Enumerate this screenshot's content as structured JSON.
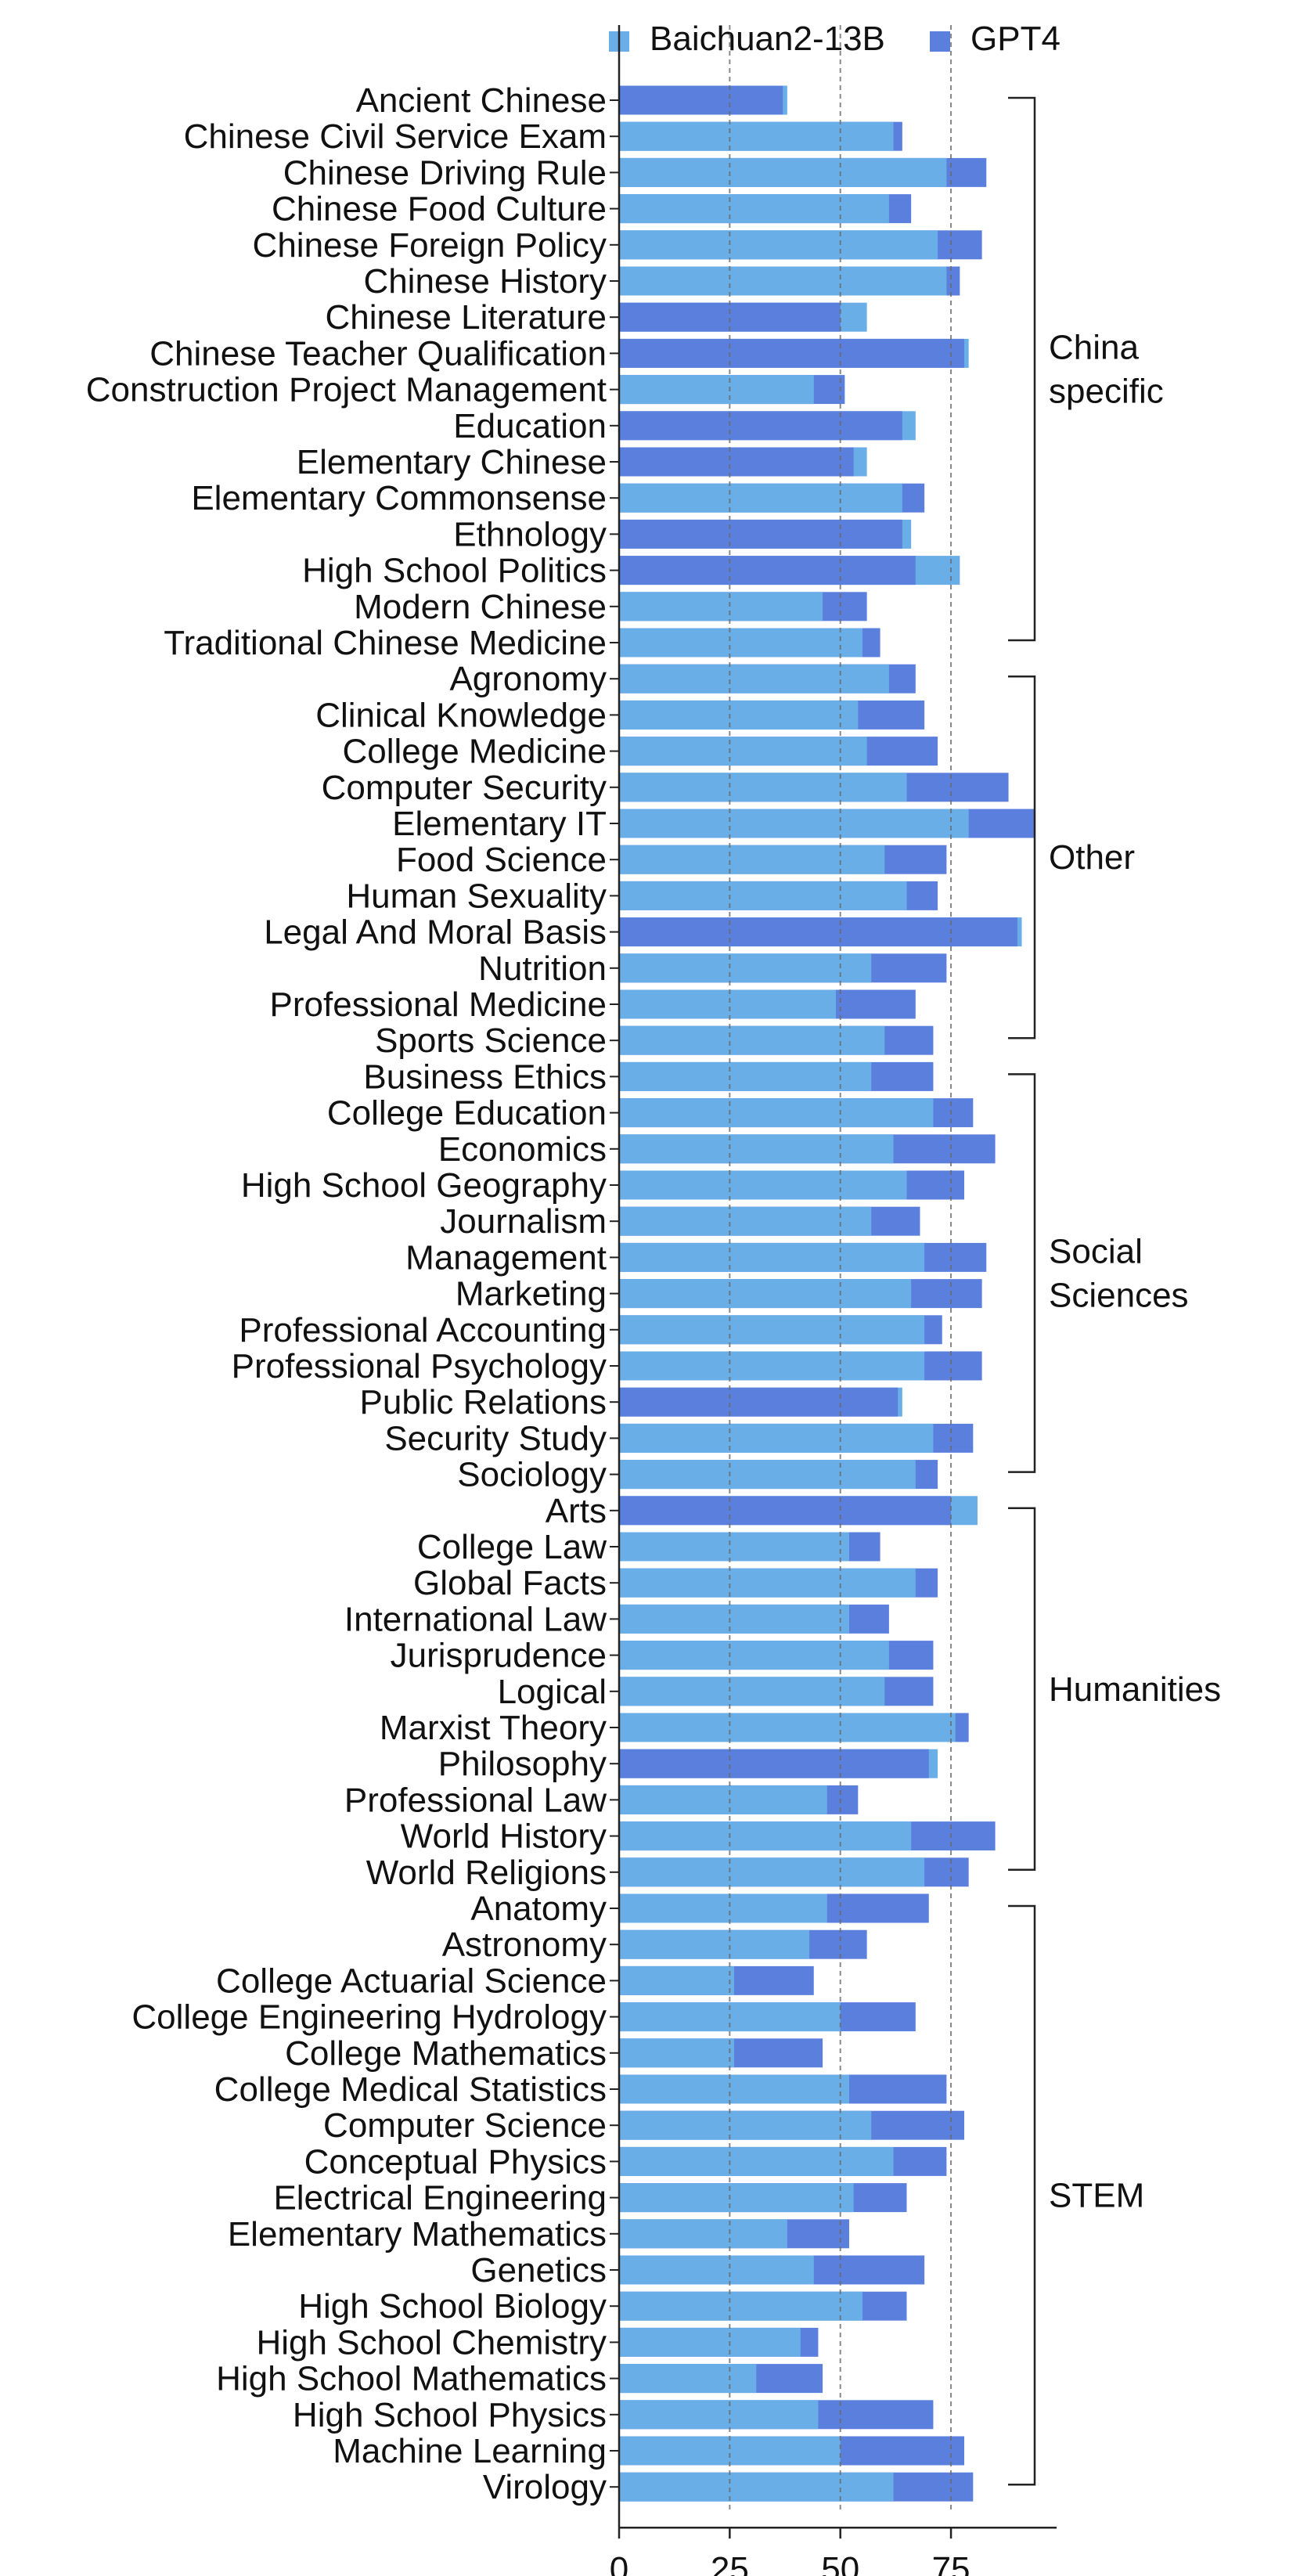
{
  "chart_data": {
    "type": "bar",
    "orientation": "horizontal",
    "xlim": [
      0,
      100
    ],
    "xticks": [
      0,
      25,
      50,
      75
    ],
    "grid": "vertical dashed at 25, 50, 75",
    "legend_position": "top",
    "series": [
      {
        "name": "Baichuan2-13B",
        "color": "#6aaee8"
      },
      {
        "name": "GPT4",
        "color": "#5b7fdc"
      }
    ],
    "groups": [
      {
        "name": "China specific",
        "label_lines": [
          "China",
          "specific"
        ],
        "rows": [
          {
            "category": "Ancient Chinese",
            "baichuan": 38,
            "gpt4": 37
          },
          {
            "category": "Chinese Civil Service Exam",
            "baichuan": 62,
            "gpt4": 64
          },
          {
            "category": "Chinese Driving Rule",
            "baichuan": 74,
            "gpt4": 83
          },
          {
            "category": "Chinese Food Culture",
            "baichuan": 61,
            "gpt4": 66
          },
          {
            "category": "Chinese Foreign Policy",
            "baichuan": 72,
            "gpt4": 82
          },
          {
            "category": "Chinese History",
            "baichuan": 74,
            "gpt4": 77
          },
          {
            "category": "Chinese Literature",
            "baichuan": 56,
            "gpt4": 50
          },
          {
            "category": "Chinese Teacher Qualification",
            "baichuan": 79,
            "gpt4": 78
          },
          {
            "category": "Construction Project Management",
            "baichuan": 44,
            "gpt4": 51
          },
          {
            "category": "Education",
            "baichuan": 67,
            "gpt4": 64
          },
          {
            "category": "Elementary Chinese",
            "baichuan": 56,
            "gpt4": 53
          },
          {
            "category": "Elementary Commonsense",
            "baichuan": 64,
            "gpt4": 69
          },
          {
            "category": "Ethnology",
            "baichuan": 66,
            "gpt4": 64
          },
          {
            "category": "High School Politics",
            "baichuan": 77,
            "gpt4": 67
          },
          {
            "category": "Modern Chinese",
            "baichuan": 46,
            "gpt4": 56
          },
          {
            "category": "Traditional Chinese Medicine",
            "baichuan": 55,
            "gpt4": 59
          }
        ]
      },
      {
        "name": "Other",
        "label_lines": [
          "Other"
        ],
        "rows": [
          {
            "category": "Agronomy",
            "baichuan": 61,
            "gpt4": 67
          },
          {
            "category": "Clinical Knowledge",
            "baichuan": 54,
            "gpt4": 69
          },
          {
            "category": "College Medicine",
            "baichuan": 56,
            "gpt4": 72
          },
          {
            "category": "Computer Security",
            "baichuan": 65,
            "gpt4": 88
          },
          {
            "category": "Elementary IT",
            "baichuan": 79,
            "gpt4": 94
          },
          {
            "category": "Food Science",
            "baichuan": 60,
            "gpt4": 74
          },
          {
            "category": "Human Sexuality",
            "baichuan": 65,
            "gpt4": 72
          },
          {
            "category": "Legal And Moral Basis",
            "baichuan": 91,
            "gpt4": 90
          },
          {
            "category": "Nutrition",
            "baichuan": 57,
            "gpt4": 74
          },
          {
            "category": "Professional Medicine",
            "baichuan": 49,
            "gpt4": 67
          },
          {
            "category": "Sports Science",
            "baichuan": 60,
            "gpt4": 71
          }
        ]
      },
      {
        "name": "Social Sciences",
        "label_lines": [
          "Social",
          "Sciences"
        ],
        "rows": [
          {
            "category": "Business Ethics",
            "baichuan": 57,
            "gpt4": 71
          },
          {
            "category": "College Education",
            "baichuan": 71,
            "gpt4": 80
          },
          {
            "category": "Economics",
            "baichuan": 62,
            "gpt4": 85
          },
          {
            "category": "High School Geography",
            "baichuan": 65,
            "gpt4": 78
          },
          {
            "category": "Journalism",
            "baichuan": 57,
            "gpt4": 68
          },
          {
            "category": "Management",
            "baichuan": 69,
            "gpt4": 83
          },
          {
            "category": "Marketing",
            "baichuan": 66,
            "gpt4": 82
          },
          {
            "category": "Professional Accounting",
            "baichuan": 69,
            "gpt4": 73
          },
          {
            "category": "Professional Psychology",
            "baichuan": 69,
            "gpt4": 82
          },
          {
            "category": "Public Relations",
            "baichuan": 64,
            "gpt4": 63
          },
          {
            "category": "Security Study",
            "baichuan": 71,
            "gpt4": 80
          },
          {
            "category": "Sociology",
            "baichuan": 67,
            "gpt4": 72
          }
        ]
      },
      {
        "name": "Humanities",
        "label_lines": [
          "Humanities"
        ],
        "rows": [
          {
            "category": "Arts",
            "baichuan": 81,
            "gpt4": 75
          },
          {
            "category": "College Law",
            "baichuan": 52,
            "gpt4": 59
          },
          {
            "category": "Global Facts",
            "baichuan": 67,
            "gpt4": 72
          },
          {
            "category": "International Law",
            "baichuan": 52,
            "gpt4": 61
          },
          {
            "category": "Jurisprudence",
            "baichuan": 61,
            "gpt4": 71
          },
          {
            "category": "Logical",
            "baichuan": 60,
            "gpt4": 71
          },
          {
            "category": "Marxist Theory",
            "baichuan": 76,
            "gpt4": 79
          },
          {
            "category": "Philosophy",
            "baichuan": 72,
            "gpt4": 70
          },
          {
            "category": "Professional Law",
            "baichuan": 47,
            "gpt4": 54
          },
          {
            "category": "World History",
            "baichuan": 66,
            "gpt4": 85
          },
          {
            "category": "World Religions",
            "baichuan": 69,
            "gpt4": 79
          }
        ]
      },
      {
        "name": "STEM",
        "label_lines": [
          "STEM"
        ],
        "rows": [
          {
            "category": "Anatomy",
            "baichuan": 47,
            "gpt4": 70
          },
          {
            "category": "Astronomy",
            "baichuan": 43,
            "gpt4": 56
          },
          {
            "category": "College Actuarial Science",
            "baichuan": 26,
            "gpt4": 44
          },
          {
            "category": "College Engineering Hydrology",
            "baichuan": 50,
            "gpt4": 67
          },
          {
            "category": "College Mathematics",
            "baichuan": 26,
            "gpt4": 46
          },
          {
            "category": "College Medical Statistics",
            "baichuan": 52,
            "gpt4": 74
          },
          {
            "category": "Computer Science",
            "baichuan": 57,
            "gpt4": 78
          },
          {
            "category": "Conceptual Physics",
            "baichuan": 62,
            "gpt4": 74
          },
          {
            "category": "Electrical Engineering",
            "baichuan": 53,
            "gpt4": 65
          },
          {
            "category": "Elementary Mathematics",
            "baichuan": 38,
            "gpt4": 52
          },
          {
            "category": "Genetics",
            "baichuan": 44,
            "gpt4": 69
          },
          {
            "category": "High School Biology",
            "baichuan": 55,
            "gpt4": 65
          },
          {
            "category": "High School Chemistry",
            "baichuan": 41,
            "gpt4": 45
          },
          {
            "category": "High School Mathematics",
            "baichuan": 31,
            "gpt4": 46
          },
          {
            "category": "High School Physics",
            "baichuan": 45,
            "gpt4": 71
          },
          {
            "category": "Machine Learning",
            "baichuan": 50,
            "gpt4": 78
          },
          {
            "category": "Virology",
            "baichuan": 62,
            "gpt4": 80
          }
        ]
      }
    ]
  }
}
